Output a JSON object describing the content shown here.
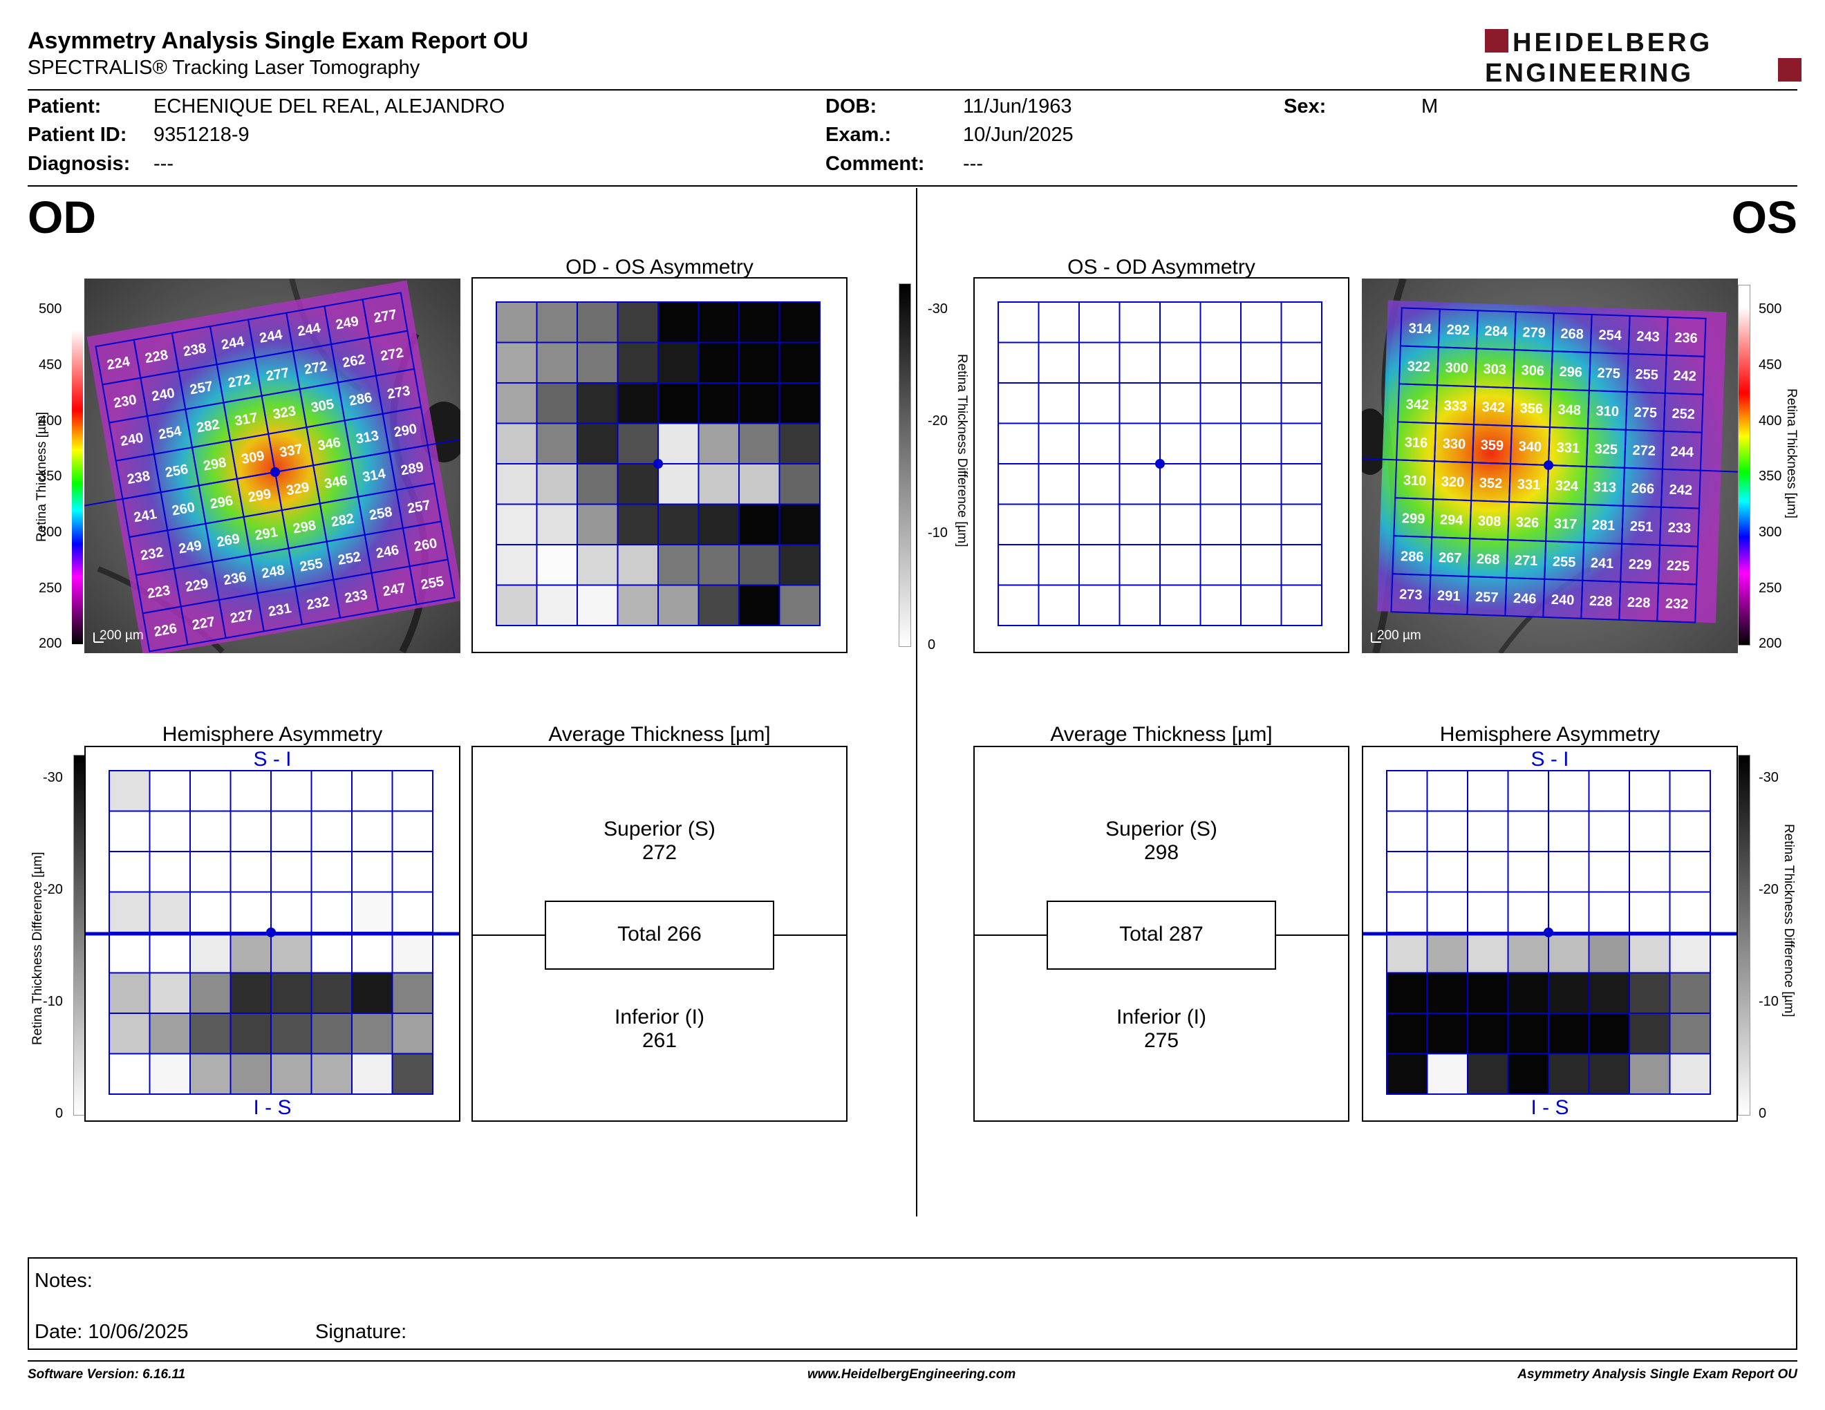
{
  "header": {
    "title": "Asymmetry Analysis Single Exam Report OU",
    "subtitle": "SPECTRALIS® Tracking Laser Tomography",
    "logo_line1": "HEIDELBERG",
    "logo_line2": "ENGINEERING"
  },
  "patient": {
    "patient_label": "Patient:",
    "patient_value": "ECHENIQUE DEL REAL, ALEJANDRO",
    "id_label": "Patient ID:",
    "id_value": "9351218-9",
    "diagnosis_label": "Diagnosis:",
    "diagnosis_value": "---",
    "dob_label": "DOB:",
    "dob_value": "11/Jun/1963",
    "exam_label": "Exam.:",
    "exam_value": "10/Jun/2025",
    "comment_label": "Comment:",
    "comment_value": "---",
    "sex_label": "Sex:",
    "sex_value": "M"
  },
  "od": {
    "eye_label": "OD",
    "asym_title": "OD - OS Asymmetry",
    "hemi_title": "Hemisphere Asymmetry",
    "avg_title": "Average Thickness [µm]",
    "scale_label": "200 µm",
    "thickness_grid": [
      [
        224,
        228,
        238,
        244,
        244,
        244,
        249,
        277
      ],
      [
        230,
        240,
        257,
        272,
        277,
        272,
        262,
        272
      ],
      [
        240,
        254,
        282,
        317,
        323,
        305,
        286,
        273
      ],
      [
        238,
        256,
        298,
        309,
        337,
        346,
        313,
        290
      ],
      [
        241,
        260,
        296,
        299,
        329,
        346,
        314,
        289
      ],
      [
        232,
        249,
        269,
        291,
        298,
        282,
        258,
        257
      ],
      [
        223,
        229,
        236,
        248,
        255,
        252,
        246,
        260
      ],
      [
        226,
        227,
        227,
        231,
        232,
        233,
        247,
        255
      ]
    ],
    "asym_gray": [
      [
        150,
        130,
        110,
        60,
        5,
        5,
        5,
        5
      ],
      [
        165,
        140,
        120,
        50,
        25,
        5,
        5,
        5
      ],
      [
        165,
        100,
        40,
        15,
        5,
        5,
        5,
        5
      ],
      [
        200,
        130,
        40,
        80,
        230,
        160,
        120,
        55
      ],
      [
        225,
        200,
        110,
        45,
        230,
        200,
        200,
        100
      ],
      [
        235,
        225,
        150,
        50,
        45,
        35,
        5,
        10
      ],
      [
        235,
        250,
        215,
        205,
        120,
        110,
        90,
        40
      ],
      [
        210,
        240,
        245,
        180,
        160,
        70,
        5,
        120
      ]
    ],
    "hemi_gray": [
      [
        225,
        255,
        255,
        255,
        255,
        255,
        255,
        255
      ],
      [
        255,
        255,
        255,
        255,
        255,
        255,
        255,
        255
      ],
      [
        255,
        255,
        255,
        255,
        255,
        255,
        255,
        255
      ],
      [
        225,
        225,
        255,
        255,
        255,
        255,
        248,
        255
      ],
      [
        255,
        255,
        235,
        175,
        190,
        255,
        255,
        245
      ],
      [
        190,
        215,
        140,
        45,
        55,
        60,
        25,
        130
      ],
      [
        200,
        160,
        90,
        65,
        80,
        105,
        130,
        160
      ],
      [
        255,
        245,
        175,
        150,
        170,
        175,
        240,
        80
      ]
    ],
    "superior_label": "Superior (S)",
    "superior_value": "272",
    "total_label": "Total 266",
    "inferior_label": "Inferior (I)",
    "inferior_value": "261"
  },
  "os": {
    "eye_label": "OS",
    "asym_title": "OS - OD Asymmetry",
    "hemi_title": "Hemisphere Asymmetry",
    "avg_title": "Average Thickness [µm]",
    "scale_label": "200 µm",
    "thickness_grid": [
      [
        314,
        292,
        284,
        279,
        268,
        254,
        243,
        236
      ],
      [
        322,
        300,
        303,
        306,
        296,
        275,
        255,
        242
      ],
      [
        342,
        333,
        342,
        356,
        348,
        310,
        275,
        252
      ],
      [
        316,
        330,
        359,
        340,
        331,
        325,
        272,
        244
      ],
      [
        310,
        320,
        352,
        331,
        324,
        313,
        266,
        242
      ],
      [
        299,
        294,
        308,
        326,
        317,
        281,
        251,
        233
      ],
      [
        286,
        267,
        268,
        271,
        255,
        241,
        229,
        225
      ],
      [
        273,
        291,
        257,
        246,
        240,
        228,
        228,
        232
      ]
    ],
    "asym_gray": [
      [
        255,
        255,
        255,
        255,
        255,
        255,
        255,
        255
      ],
      [
        255,
        255,
        255,
        255,
        255,
        255,
        255,
        255
      ],
      [
        255,
        255,
        255,
        255,
        255,
        255,
        255,
        255
      ],
      [
        255,
        255,
        255,
        255,
        255,
        255,
        255,
        255
      ],
      [
        255,
        255,
        255,
        255,
        255,
        255,
        255,
        255
      ],
      [
        255,
        255,
        255,
        255,
        255,
        255,
        255,
        255
      ],
      [
        255,
        255,
        255,
        255,
        255,
        255,
        255,
        255
      ],
      [
        255,
        255,
        255,
        255,
        255,
        255,
        255,
        255
      ]
    ],
    "hemi_gray": [
      [
        255,
        255,
        255,
        255,
        255,
        255,
        255,
        255
      ],
      [
        255,
        255,
        255,
        255,
        255,
        255,
        255,
        255
      ],
      [
        255,
        255,
        255,
        255,
        255,
        255,
        255,
        255
      ],
      [
        255,
        255,
        255,
        255,
        255,
        255,
        255,
        255
      ],
      [
        215,
        175,
        215,
        180,
        190,
        155,
        215,
        235
      ],
      [
        5,
        5,
        5,
        10,
        20,
        25,
        60,
        110
      ],
      [
        5,
        5,
        5,
        5,
        5,
        5,
        50,
        120
      ],
      [
        10,
        245,
        40,
        5,
        40,
        40,
        150,
        230
      ]
    ],
    "superior_label": "Superior (S)",
    "superior_value": "298",
    "total_label": "Total 287",
    "inferior_label": "Inferior (I)",
    "inferior_value": "275"
  },
  "legend": {
    "thickness_label": "Retina  Thickness [µm]",
    "thickness_ticks": [
      "500",
      "450",
      "400",
      "350",
      "300",
      "250",
      "200"
    ],
    "diff_label": "Retina Thickness Difference [µm]",
    "diff_ticks": [
      "-30",
      "-20",
      "-10",
      "0"
    ],
    "hemi_top": "S - I",
    "hemi_bottom": "I - S"
  },
  "notes": {
    "notes_label": "Notes:",
    "date_label": "Date: 10/06/2025",
    "signature_label": "Signature:"
  },
  "footer": {
    "software": "Software Version: 6.16.11",
    "website": "www.HeidelbergEngineering.com",
    "report_name": "Asymmetry Analysis Single Exam Report OU"
  },
  "colors": {
    "grid_blue": "#0000cc",
    "logo_red": "#8b1a2b"
  }
}
